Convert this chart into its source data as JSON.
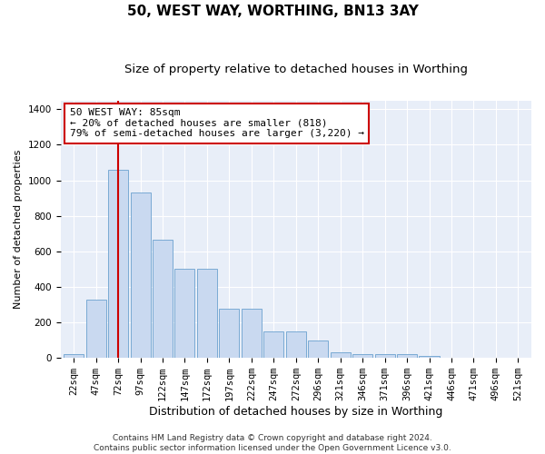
{
  "title": "50, WEST WAY, WORTHING, BN13 3AY",
  "subtitle": "Size of property relative to detached houses in Worthing",
  "xlabel": "Distribution of detached houses by size in Worthing",
  "ylabel": "Number of detached properties",
  "categories": [
    "22sqm",
    "47sqm",
    "72sqm",
    "97sqm",
    "122sqm",
    "147sqm",
    "172sqm",
    "197sqm",
    "222sqm",
    "247sqm",
    "272sqm",
    "296sqm",
    "321sqm",
    "346sqm",
    "371sqm",
    "396sqm",
    "421sqm",
    "446sqm",
    "471sqm",
    "496sqm",
    "521sqm"
  ],
  "values": [
    20,
    330,
    1060,
    930,
    665,
    500,
    500,
    275,
    275,
    150,
    150,
    100,
    30,
    20,
    20,
    20,
    10,
    0,
    0,
    0,
    0
  ],
  "bar_color": "#c9d9f0",
  "bar_edge_color": "#7aaad4",
  "vline_x": 2,
  "vline_color": "#cc0000",
  "annotation_text": "50 WEST WAY: 85sqm\n← 20% of detached houses are smaller (818)\n79% of semi-detached houses are larger (3,220) →",
  "annotation_box_color": "#ffffff",
  "annotation_box_edge_color": "#cc0000",
  "ylim": [
    0,
    1450
  ],
  "yticks": [
    0,
    200,
    400,
    600,
    800,
    1000,
    1200,
    1400
  ],
  "background_color": "#e8eef8",
  "footer_text": "Contains HM Land Registry data © Crown copyright and database right 2024.\nContains public sector information licensed under the Open Government Licence v3.0.",
  "title_fontsize": 11,
  "subtitle_fontsize": 9.5,
  "xlabel_fontsize": 9,
  "ylabel_fontsize": 8,
  "tick_fontsize": 7.5,
  "annotation_fontsize": 8,
  "footer_fontsize": 6.5
}
